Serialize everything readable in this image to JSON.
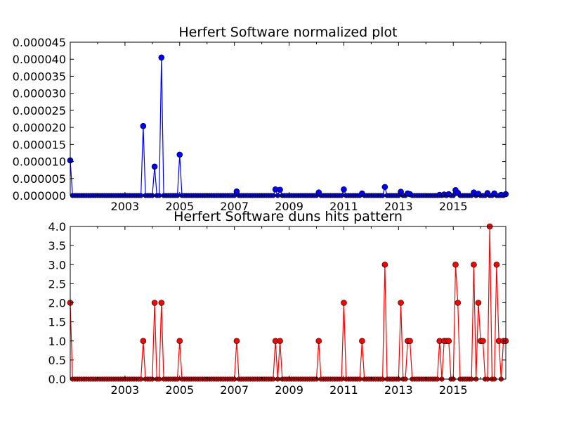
{
  "charts": [
    {
      "type": "line",
      "title": "Herfert Software normalized plot",
      "xlim": [
        2001.0,
        2016.92
      ],
      "ylim": [
        0,
        4.5e-05
      ],
      "yticks": [
        "0.000000",
        "0.000005",
        "0.000010",
        "0.000015",
        "0.000020",
        "0.000025",
        "0.000030",
        "0.000035",
        "0.000040",
        "0.000045"
      ],
      "xticks": [
        "2003",
        "2005",
        "2007",
        "2009",
        "2011",
        "2013",
        "2015"
      ],
      "color": "#0000ff",
      "marker_color": "#0000ff",
      "points": [
        [
          2001.0,
          1.03e-05
        ],
        [
          2003.67,
          2.04e-05
        ],
        [
          2004.08,
          8.5e-06
        ],
        [
          2004.33,
          4.05e-05
        ],
        [
          2005.0,
          1.2e-05
        ],
        [
          2007.08,
          1.2e-06
        ],
        [
          2008.5,
          1.8e-06
        ],
        [
          2008.67,
          1.7e-06
        ],
        [
          2010.08,
          9e-07
        ],
        [
          2011.0,
          1.8e-06
        ],
        [
          2011.67,
          6e-07
        ],
        [
          2012.5,
          2.5e-06
        ],
        [
          2013.08,
          1.1e-06
        ],
        [
          2013.33,
          6e-07
        ],
        [
          2013.42,
          4e-07
        ],
        [
          2014.5,
          2e-07
        ],
        [
          2014.67,
          3e-07
        ],
        [
          2014.83,
          4e-07
        ],
        [
          2015.08,
          1.6e-06
        ],
        [
          2015.17,
          8e-07
        ],
        [
          2015.75,
          9e-07
        ],
        [
          2015.92,
          5e-07
        ],
        [
          2016.25,
          7e-07
        ],
        [
          2016.5,
          6e-07
        ],
        [
          2016.75,
          2e-07
        ],
        [
          2016.92,
          4e-07
        ]
      ]
    },
    {
      "type": "line",
      "title": "Herfert Software duns hits pattern",
      "xlim": [
        2001.0,
        2016.92
      ],
      "ylim": [
        0,
        4.0
      ],
      "yticks": [
        "0.0",
        "0.5",
        "1.0",
        "1.5",
        "2.0",
        "2.5",
        "3.0",
        "3.5",
        "4.0"
      ],
      "xticks": [
        "2003",
        "2005",
        "2007",
        "2009",
        "2011",
        "2013",
        "2015"
      ],
      "color": "#ff0000",
      "marker_color": "#ff0000",
      "points": [
        [
          2001.0,
          2
        ],
        [
          2003.67,
          1
        ],
        [
          2004.08,
          2
        ],
        [
          2004.33,
          2
        ],
        [
          2005.0,
          1
        ],
        [
          2007.08,
          1
        ],
        [
          2008.5,
          1
        ],
        [
          2008.67,
          1
        ],
        [
          2010.08,
          1
        ],
        [
          2011.0,
          2
        ],
        [
          2011.67,
          1
        ],
        [
          2012.5,
          3
        ],
        [
          2013.08,
          2
        ],
        [
          2013.33,
          1
        ],
        [
          2013.42,
          1
        ],
        [
          2014.5,
          1
        ],
        [
          2014.67,
          1
        ],
        [
          2014.75,
          1
        ],
        [
          2014.83,
          1
        ],
        [
          2015.08,
          3
        ],
        [
          2015.17,
          2
        ],
        [
          2015.75,
          3
        ],
        [
          2015.92,
          2
        ],
        [
          2016.0,
          1
        ],
        [
          2016.08,
          1
        ],
        [
          2016.33,
          4
        ],
        [
          2016.58,
          3
        ],
        [
          2016.67,
          1
        ],
        [
          2016.83,
          1
        ],
        [
          2016.92,
          1
        ]
      ]
    }
  ]
}
